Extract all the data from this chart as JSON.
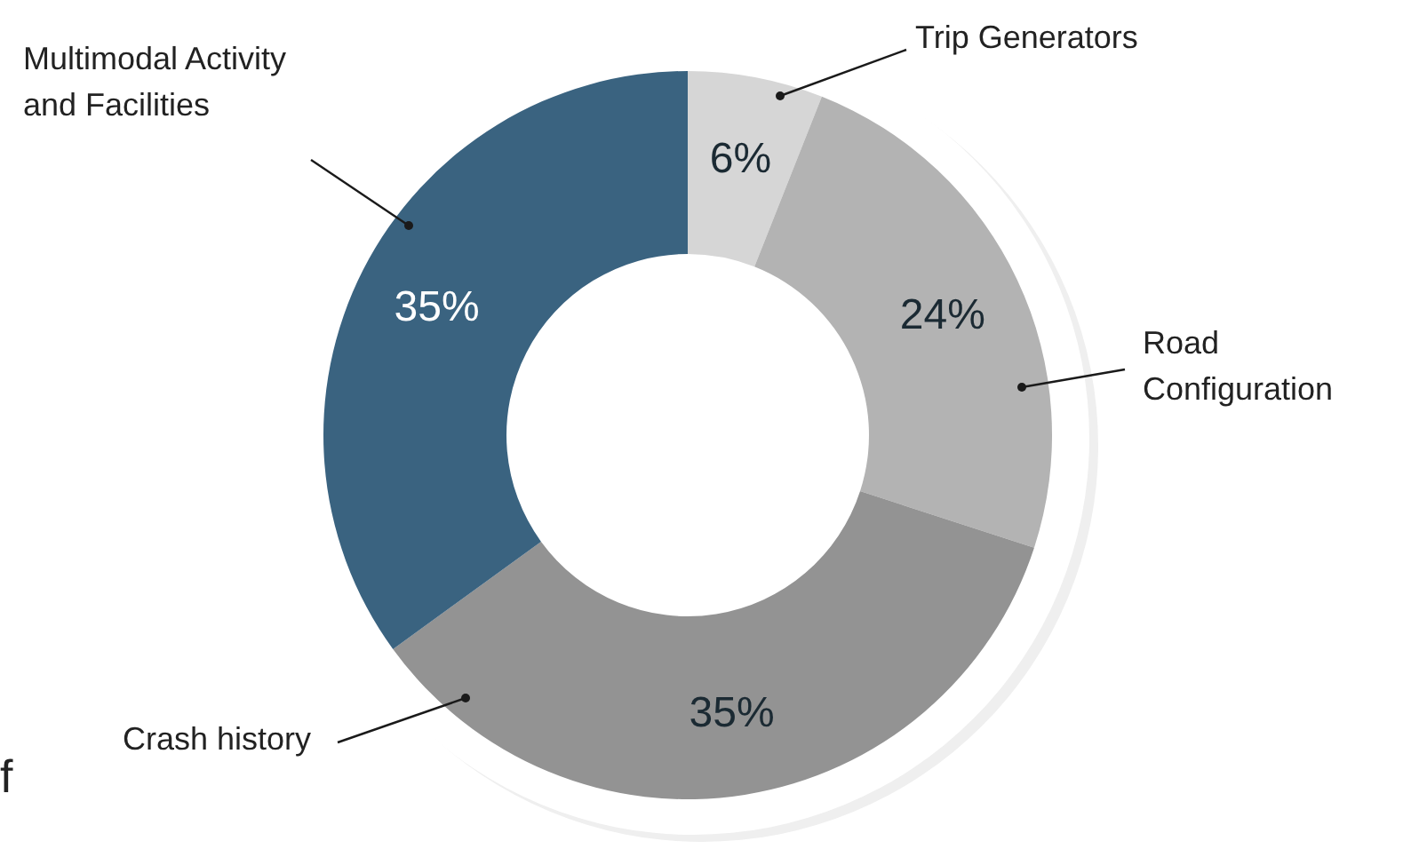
{
  "chart_data": {
    "type": "donut",
    "categories": [
      "Trip Generators",
      "Road Configuration",
      "Crash history",
      "Multimodal Activity and Facilities"
    ],
    "values": [
      6,
      24,
      35,
      35
    ],
    "value_labels": [
      "6%",
      "24%",
      "35%",
      "35%"
    ],
    "colors": [
      "#d6d6d6",
      "#b3b3b3",
      "#939393",
      "#3a6380"
    ],
    "annotations": [
      "f"
    ]
  }
}
